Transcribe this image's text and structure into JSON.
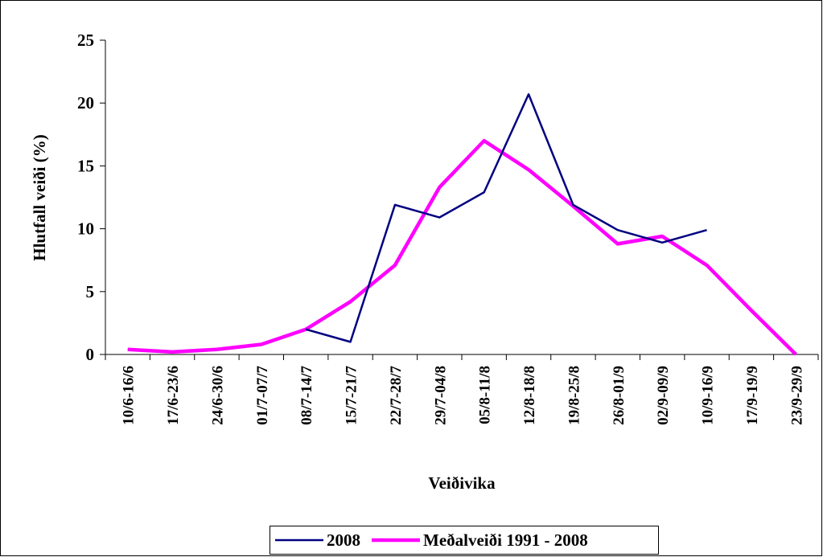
{
  "chart_data": {
    "type": "line",
    "y_label": "Hlutfall veiði (%)",
    "x_label": "Veiðivika",
    "categories": [
      "10/6-16/6",
      "17/6-23/6",
      "24/6-30/6",
      "01/7-07/7",
      "08/7-14/7",
      "15/7-21/7",
      "22/7-28/7",
      "29/7-04/8",
      "05/8-11/8",
      "12/8-18/8",
      "19/8-25/8",
      "26/8-01/9",
      "02/9-09/9",
      "10/9-16/9",
      "17/9-19/9",
      "23/9-29/9"
    ],
    "series": [
      {
        "name": "2008",
        "color": "#000080",
        "values": [
          null,
          null,
          null,
          null,
          2.0,
          1.0,
          11.9,
          10.9,
          12.9,
          20.7,
          11.9,
          9.9,
          8.9,
          9.9,
          null,
          null
        ]
      },
      {
        "name": "Meðalveiði 1991 - 2008",
        "color": "#ff00ff",
        "values": [
          0.4,
          0.2,
          0.4,
          0.8,
          2.0,
          4.2,
          7.1,
          13.3,
          17.0,
          14.7,
          11.8,
          8.8,
          9.4,
          7.1,
          3.5,
          0.0
        ]
      }
    ],
    "ylim": [
      0,
      25
    ],
    "yticks": [
      0,
      5,
      10,
      15,
      20,
      25
    ],
    "grid": false
  }
}
